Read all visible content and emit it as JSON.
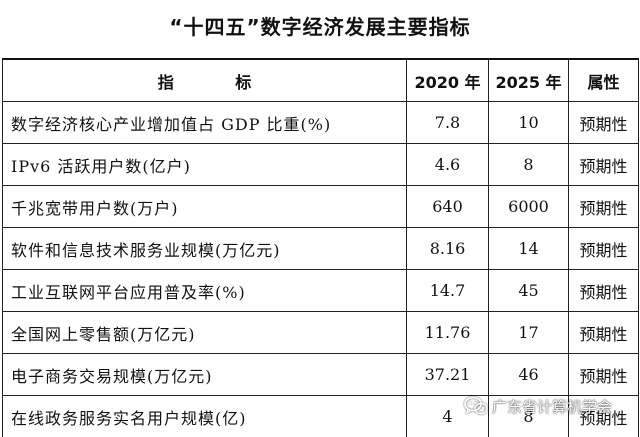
{
  "title": "“十四五”数字经济发展主要指标",
  "table": {
    "headers": {
      "indicator": "指 标",
      "y2020": "2020 年",
      "y2025": "2025 年",
      "attribute": "属性"
    },
    "rows": [
      {
        "indicator": "数字经济核心产业增加值占 GDP 比重(%)",
        "y2020": "7.8",
        "y2025": "10",
        "attribute": "预期性"
      },
      {
        "indicator": "IPv6 活跃用户数(亿户)",
        "y2020": "4.6",
        "y2025": "8",
        "attribute": "预期性"
      },
      {
        "indicator": "千兆宽带用户数(万户)",
        "y2020": "640",
        "y2025": "6000",
        "attribute": "预期性"
      },
      {
        "indicator": "软件和信息技术服务业规模(万亿元)",
        "y2020": "8.16",
        "y2025": "14",
        "attribute": "预期性"
      },
      {
        "indicator": "工业互联网平台应用普及率(%)",
        "y2020": "14.7",
        "y2025": "45",
        "attribute": "预期性"
      },
      {
        "indicator": "全国网上零售额(万亿元)",
        "y2020": "11.76",
        "y2025": "17",
        "attribute": "预期性"
      },
      {
        "indicator": "电子商务交易规模(万亿元)",
        "y2020": "37.21",
        "y2025": "46",
        "attribute": "预期性"
      },
      {
        "indicator": "在线政务服务实名用户规模(亿)",
        "y2020": "4",
        "y2025": "8",
        "attribute": "预期性"
      }
    ]
  },
  "watermark": {
    "text": "广东省计算机学会",
    "icon": "wechat-icon"
  }
}
